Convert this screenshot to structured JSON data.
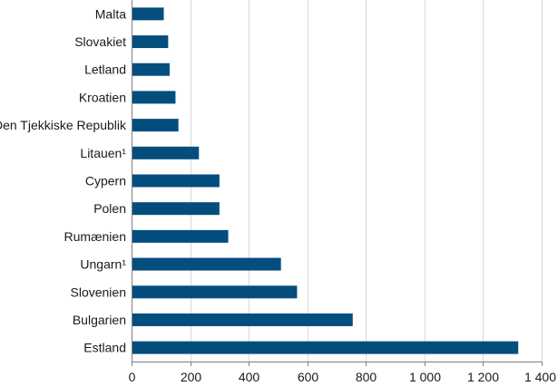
{
  "chart_data": {
    "type": "bar",
    "orientation": "horizontal",
    "categories": [
      "Malta",
      "Slovakiet",
      "Letland",
      "Kroatien",
      "Den Tjekkiske Republik",
      "Litauen¹",
      "Cypern",
      "Polen",
      "Rumænien",
      "Ungarn¹",
      "Slovenien",
      "Bulgarien",
      "Estland"
    ],
    "values": [
      110,
      125,
      130,
      150,
      160,
      230,
      300,
      300,
      330,
      510,
      565,
      755,
      1320
    ],
    "xlim": [
      0,
      1400
    ],
    "x_ticks": [
      0,
      200,
      400,
      600,
      800,
      1000,
      1200,
      1400
    ],
    "x_tick_labels": [
      "0",
      "200",
      "400",
      "600",
      "800",
      "1 000",
      "1 200",
      "1 400"
    ],
    "grid": true,
    "bar_color": "#044e7e",
    "title": "",
    "xlabel": "",
    "ylabel": ""
  }
}
